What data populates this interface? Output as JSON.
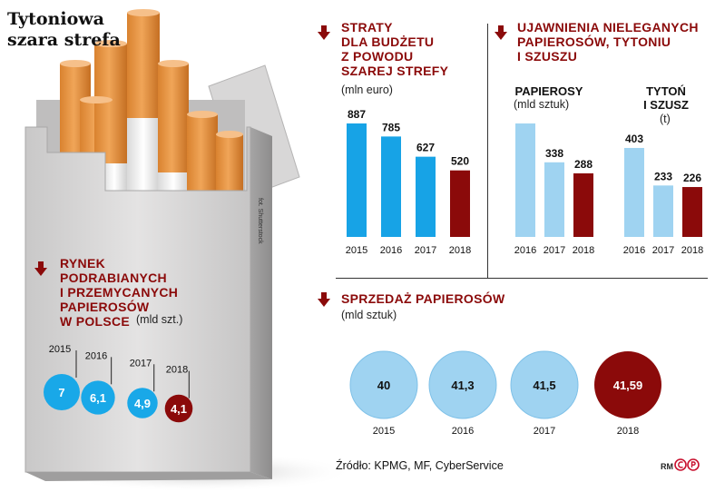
{
  "title": "Tytoniowa\nszara strefa",
  "photo_credit": "fot. Shutterstock",
  "source": "Źródło: KPMG, MF, CyberService",
  "logo": {
    "rm": "RM",
    "cp": "CP"
  },
  "colors": {
    "blue": "#19a8e8",
    "light_blue": "#9fd3f1",
    "dark_red": "#8b0a0a",
    "bar_blue": "#17a3e6"
  },
  "chart_data": [
    {
      "type": "bubble",
      "title": "RYNEK\nPODRABIANYCH\nI PRZEMYCANYCH\nPAPIEROSÓW\nW POLSCE",
      "unit": "(mld szt.)",
      "categories": [
        "2015",
        "2016",
        "2017",
        "2018"
      ],
      "values": [
        7,
        6.1,
        4.9,
        4.1
      ],
      "labels": [
        "7",
        "6,1",
        "4,9",
        "4,1"
      ]
    },
    {
      "type": "bar",
      "title": "STRATY\nDLA BUDŻETU\nZ POWODU\nSZAREJ STREFY",
      "unit": "(mln euro)",
      "categories": [
        "2015",
        "2016",
        "2017",
        "2018"
      ],
      "values": [
        887,
        785,
        627,
        520
      ]
    },
    {
      "type": "bar",
      "title": "UJAWNIENIA NIELEGANYCH\nPAPIEROSÓW, TYTONIU\nI SZUSZU",
      "panels": [
        {
          "subtitle": "PAPIEROSY",
          "unit": "(mld sztuk)",
          "categories": [
            "2016",
            "2017",
            "2018"
          ],
          "values": [
            514,
            338,
            288
          ]
        },
        {
          "subtitle": "TYTOŃ\nI SZUSZ",
          "unit": "(t)",
          "categories": [
            "2016",
            "2017",
            "2018"
          ],
          "values": [
            403,
            233,
            226
          ]
        }
      ]
    },
    {
      "type": "bubble",
      "title": "SPRZEDAŻ PAPIEROSÓW",
      "unit": "(mld sztuk)",
      "categories": [
        "2015",
        "2016",
        "2017",
        "2018"
      ],
      "values": [
        40,
        41.3,
        41.5,
        41.59
      ],
      "labels": [
        "40",
        "41,3",
        "41,5",
        "41,59"
      ]
    }
  ]
}
